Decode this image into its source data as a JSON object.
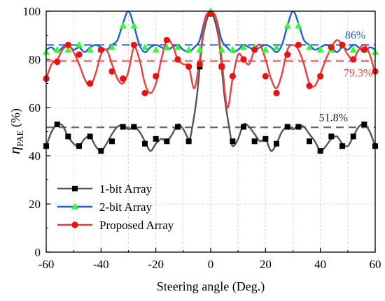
{
  "chart_data": {
    "type": "line",
    "xlabel": "Steering angle (Deg.)",
    "ylabel": {
      "main": "η",
      "sub": "PAE",
      "unit": " (%)"
    },
    "xlim": [
      -60,
      60
    ],
    "ylim": [
      0,
      100
    ],
    "xticks": [
      -60,
      -40,
      -20,
      0,
      20,
      40,
      60
    ],
    "yticks": [
      0,
      20,
      40,
      60,
      80,
      100
    ],
    "xticks_minor": [
      -50,
      -30,
      -10,
      10,
      30,
      50
    ],
    "grid": "dashed-light",
    "legend_position": "bottom-left",
    "series": [
      {
        "name": "1-bit Array",
        "color": "#555555",
        "marker": "square",
        "marker_color": "#000000",
        "average": 51.8,
        "curve": [
          [
            -60,
            44
          ],
          [
            -58,
            50
          ],
          [
            -56,
            53
          ],
          [
            -54,
            52.5
          ],
          [
            -52,
            48
          ],
          [
            -50,
            45
          ],
          [
            -48,
            44
          ],
          [
            -46,
            47
          ],
          [
            -44,
            48
          ],
          [
            -42,
            44
          ],
          [
            -40,
            42
          ],
          [
            -38,
            45
          ],
          [
            -36,
            49
          ],
          [
            -34,
            52
          ],
          [
            -32,
            52.5
          ],
          [
            -30,
            51
          ],
          [
            -28,
            52
          ],
          [
            -26,
            50
          ],
          [
            -24,
            46
          ],
          [
            -22,
            42
          ],
          [
            -20,
            45
          ],
          [
            -18,
            47
          ],
          [
            -16,
            46
          ],
          [
            -14,
            49
          ],
          [
            -12,
            53
          ],
          [
            -10,
            51
          ],
          [
            -8,
            47
          ],
          [
            -7,
            50
          ],
          [
            -5,
            65
          ],
          [
            -3,
            88
          ],
          [
            -1,
            98
          ],
          [
            0,
            99
          ],
          [
            1,
            98
          ],
          [
            3,
            88
          ],
          [
            5,
            65
          ],
          [
            7,
            50
          ],
          [
            8,
            44
          ],
          [
            10,
            47
          ],
          [
            12,
            53
          ],
          [
            14,
            52
          ],
          [
            16,
            49
          ],
          [
            18,
            46
          ],
          [
            20,
            47
          ],
          [
            22,
            42
          ],
          [
            24,
            45
          ],
          [
            26,
            50
          ],
          [
            28,
            52
          ],
          [
            30,
            51
          ],
          [
            32,
            52.5
          ],
          [
            34,
            52
          ],
          [
            36,
            49
          ],
          [
            38,
            46
          ],
          [
            40,
            42
          ],
          [
            42,
            44
          ],
          [
            44,
            47
          ],
          [
            46,
            48
          ],
          [
            48,
            45
          ],
          [
            50,
            44
          ],
          [
            52,
            48
          ],
          [
            54,
            52
          ],
          [
            56,
            53
          ],
          [
            58,
            50
          ],
          [
            60,
            44
          ]
        ],
        "markers": [
          [
            -60,
            44
          ],
          [
            -56,
            53
          ],
          [
            -52,
            48
          ],
          [
            -48,
            44
          ],
          [
            -44,
            48
          ],
          [
            -40,
            42
          ],
          [
            -36,
            46
          ],
          [
            -32,
            52
          ],
          [
            -28,
            52
          ],
          [
            -24,
            45
          ],
          [
            -20,
            47
          ],
          [
            -16,
            46
          ],
          [
            -12,
            52
          ],
          [
            -8,
            46
          ],
          [
            -4,
            77
          ],
          [
            0,
            99
          ],
          [
            4,
            77
          ],
          [
            8,
            46
          ],
          [
            12,
            52
          ],
          [
            16,
            46
          ],
          [
            20,
            47
          ],
          [
            24,
            45
          ],
          [
            28,
            52
          ],
          [
            32,
            52
          ],
          [
            36,
            46
          ],
          [
            40,
            42
          ],
          [
            44,
            48
          ],
          [
            48,
            44
          ],
          [
            52,
            48
          ],
          [
            56,
            53
          ],
          [
            60,
            44
          ]
        ]
      },
      {
        "name": "2-bit Array",
        "color": "#1f5fd6",
        "marker": "triangle",
        "marker_color": "#33ff33",
        "average": 86,
        "curve": [
          [
            -60,
            84
          ],
          [
            -58,
            85
          ],
          [
            -56,
            83
          ],
          [
            -54,
            85
          ],
          [
            -52,
            86
          ],
          [
            -50,
            84
          ],
          [
            -48,
            85
          ],
          [
            -46,
            83
          ],
          [
            -44,
            85
          ],
          [
            -42,
            86
          ],
          [
            -40,
            85
          ],
          [
            -38,
            84
          ],
          [
            -36,
            86
          ],
          [
            -34,
            88
          ],
          [
            -32,
            95
          ],
          [
            -30,
            100
          ],
          [
            -28,
            94
          ],
          [
            -26,
            86
          ],
          [
            -24,
            83
          ],
          [
            -22,
            85
          ],
          [
            -20,
            86
          ],
          [
            -18,
            85
          ],
          [
            -16,
            84
          ],
          [
            -14,
            85
          ],
          [
            -12,
            86
          ],
          [
            -10,
            84
          ],
          [
            -8,
            83
          ],
          [
            -6,
            85
          ],
          [
            -4,
            88
          ],
          [
            -2,
            97
          ],
          [
            0,
            100
          ],
          [
            2,
            97
          ],
          [
            4,
            88
          ],
          [
            6,
            85
          ],
          [
            8,
            83
          ],
          [
            10,
            84
          ],
          [
            12,
            86
          ],
          [
            14,
            85
          ],
          [
            16,
            84
          ],
          [
            18,
            85
          ],
          [
            20,
            86
          ],
          [
            22,
            85
          ],
          [
            24,
            83
          ],
          [
            26,
            86
          ],
          [
            28,
            94
          ],
          [
            30,
            100
          ],
          [
            32,
            95
          ],
          [
            34,
            88
          ],
          [
            36,
            86
          ],
          [
            38,
            84
          ],
          [
            40,
            85
          ],
          [
            42,
            86
          ],
          [
            44,
            85
          ],
          [
            46,
            83
          ],
          [
            48,
            85
          ],
          [
            50,
            84
          ],
          [
            52,
            86
          ],
          [
            54,
            85
          ],
          [
            56,
            83
          ],
          [
            58,
            85
          ],
          [
            60,
            84
          ]
        ],
        "markers": [
          [
            -60,
            83
          ],
          [
            -56,
            84
          ],
          [
            -52,
            84
          ],
          [
            -48,
            86
          ],
          [
            -44,
            84
          ],
          [
            -40,
            84
          ],
          [
            -36,
            85
          ],
          [
            -32,
            94
          ],
          [
            -28,
            94
          ],
          [
            -24,
            85
          ],
          [
            -20,
            84
          ],
          [
            -16,
            85
          ],
          [
            -12,
            85
          ],
          [
            -8,
            84
          ],
          [
            -4,
            84
          ],
          [
            0,
            100
          ],
          [
            4,
            84
          ],
          [
            8,
            84
          ],
          [
            12,
            85
          ],
          [
            16,
            85
          ],
          [
            20,
            84
          ],
          [
            24,
            85
          ],
          [
            28,
            94
          ],
          [
            32,
            94
          ],
          [
            36,
            85
          ],
          [
            40,
            84
          ],
          [
            44,
            84
          ],
          [
            48,
            86
          ],
          [
            52,
            84
          ],
          [
            56,
            84
          ],
          [
            60,
            83
          ]
        ]
      },
      {
        "name": "Proposed Array",
        "color": "#e84040",
        "marker": "circle",
        "marker_color": "#ee1111",
        "average": 79.3,
        "curve": [
          [
            -60,
            72
          ],
          [
            -58,
            78
          ],
          [
            -56,
            80
          ],
          [
            -54,
            84
          ],
          [
            -52,
            86
          ],
          [
            -50,
            83
          ],
          [
            -48,
            78
          ],
          [
            -46,
            72
          ],
          [
            -44,
            69
          ],
          [
            -42,
            74
          ],
          [
            -40,
            82
          ],
          [
            -38,
            84
          ],
          [
            -36,
            78
          ],
          [
            -34,
            72
          ],
          [
            -32,
            70
          ],
          [
            -30,
            75
          ],
          [
            -28,
            85
          ],
          [
            -26,
            80
          ],
          [
            -24,
            70
          ],
          [
            -22,
            66
          ],
          [
            -20,
            70
          ],
          [
            -18,
            80
          ],
          [
            -16,
            88
          ],
          [
            -14,
            86
          ],
          [
            -12,
            80
          ],
          [
            -10,
            78
          ],
          [
            -8,
            77
          ],
          [
            -6,
            68
          ],
          [
            -4,
            80
          ],
          [
            -2,
            97
          ],
          [
            0,
            99
          ],
          [
            2,
            97
          ],
          [
            4,
            80
          ],
          [
            6,
            60
          ],
          [
            8,
            72
          ],
          [
            10,
            82
          ],
          [
            12,
            80
          ],
          [
            14,
            78
          ],
          [
            16,
            84
          ],
          [
            18,
            86
          ],
          [
            20,
            80
          ],
          [
            22,
            72
          ],
          [
            24,
            68
          ],
          [
            26,
            74
          ],
          [
            28,
            84
          ],
          [
            30,
            86
          ],
          [
            32,
            84
          ],
          [
            34,
            78
          ],
          [
            36,
            70
          ],
          [
            38,
            69
          ],
          [
            40,
            74
          ],
          [
            42,
            80
          ],
          [
            44,
            85
          ],
          [
            46,
            88
          ],
          [
            48,
            86
          ],
          [
            50,
            82
          ],
          [
            52,
            80
          ],
          [
            54,
            84
          ],
          [
            56,
            86
          ],
          [
            58,
            82
          ],
          [
            60,
            74
          ]
        ],
        "markers": [
          [
            -60,
            72
          ],
          [
            -56,
            79
          ],
          [
            -52,
            86
          ],
          [
            -48,
            82
          ],
          [
            -44,
            70
          ],
          [
            -40,
            84
          ],
          [
            -36,
            75
          ],
          [
            -32,
            72
          ],
          [
            -28,
            86
          ],
          [
            -24,
            66
          ],
          [
            -20,
            73
          ],
          [
            -16,
            88
          ],
          [
            -12,
            80
          ],
          [
            -8,
            77
          ],
          [
            -4,
            78
          ],
          [
            0,
            99
          ],
          [
            4,
            77
          ],
          [
            8,
            73
          ],
          [
            12,
            80
          ],
          [
            16,
            84
          ],
          [
            20,
            73
          ],
          [
            24,
            66
          ],
          [
            28,
            82
          ],
          [
            32,
            86
          ],
          [
            36,
            69
          ],
          [
            40,
            73
          ],
          [
            44,
            85
          ],
          [
            48,
            86
          ],
          [
            52,
            80
          ],
          [
            56,
            84
          ],
          [
            60,
            75
          ]
        ]
      }
    ],
    "annotations": [
      {
        "text": "86%",
        "x": 49,
        "y": 86,
        "color": "#1f5fd6"
      },
      {
        "text": "79.3%",
        "x": 48,
        "y": 79.3,
        "color": "#e84040"
      },
      {
        "text": "51.8%",
        "x": 40,
        "y": 51.8,
        "color": "#222222"
      }
    ]
  }
}
